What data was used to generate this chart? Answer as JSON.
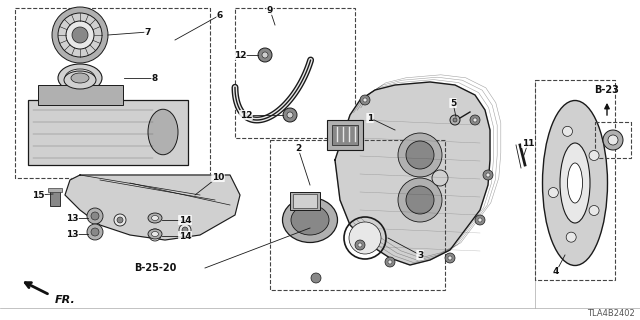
{
  "bg_color": "#ffffff",
  "fig_width": 6.4,
  "fig_height": 3.2,
  "dpi": 100,
  "diagram_code": "TLA4B2402",
  "ref_b23": "B-23",
  "ref_b25": "B-25-20",
  "ref_fr": "FR.",
  "lc": "#1a1a1a",
  "tc": "#111111",
  "dc": "#444444",
  "gray1": "#888888",
  "gray2": "#b0b0b0",
  "gray3": "#d0d0d0",
  "gray4": "#e8e8e8"
}
